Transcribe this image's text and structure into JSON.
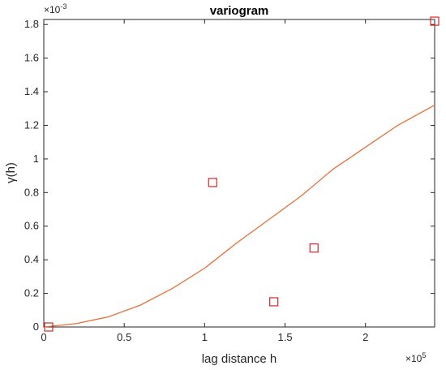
{
  "chart_data": {
    "type": "scatter",
    "title": "variogram",
    "xlabel": "lag distance h",
    "ylabel": "γ(h)",
    "x_multiplier_label": "×10",
    "x_multiplier_exp": "5",
    "y_multiplier_label": "×10",
    "y_multiplier_exp": "-3",
    "xlim": [
      0,
      243000
    ],
    "ylim": [
      0,
      0.00183
    ],
    "x_ticks": [
      0,
      50000,
      100000,
      150000,
      200000
    ],
    "x_tick_labels": [
      "0",
      "0.5",
      "1",
      "1.5",
      "2"
    ],
    "y_ticks": [
      0,
      0.0002,
      0.0004,
      0.0006,
      0.0008,
      0.001,
      0.0012,
      0.0014,
      0.0016,
      0.0018
    ],
    "y_tick_labels": [
      "0",
      "0.2",
      "0.4",
      "0.6",
      "0.8",
      "1",
      "1.2",
      "1.4",
      "1.6",
      "1.8"
    ],
    "grid": false,
    "series": [
      {
        "kind": "markers",
        "marker": "square",
        "color": "#d62728",
        "x": [
          3000,
          105000,
          143000,
          168000,
          243000
        ],
        "y": [
          0.0,
          0.00086,
          0.00015,
          0.00047,
          0.00182
        ]
      },
      {
        "kind": "line",
        "color": "#e5703a",
        "x": [
          0,
          20000,
          40000,
          60000,
          80000,
          100000,
          120000,
          140000,
          160000,
          180000,
          200000,
          220000,
          243000
        ],
        "y": [
          0.0,
          2e-05,
          6e-05,
          0.00013,
          0.00023,
          0.00035,
          0.0005,
          0.00064,
          0.00078,
          0.00094,
          0.00107,
          0.0012,
          0.00132
        ]
      }
    ]
  }
}
